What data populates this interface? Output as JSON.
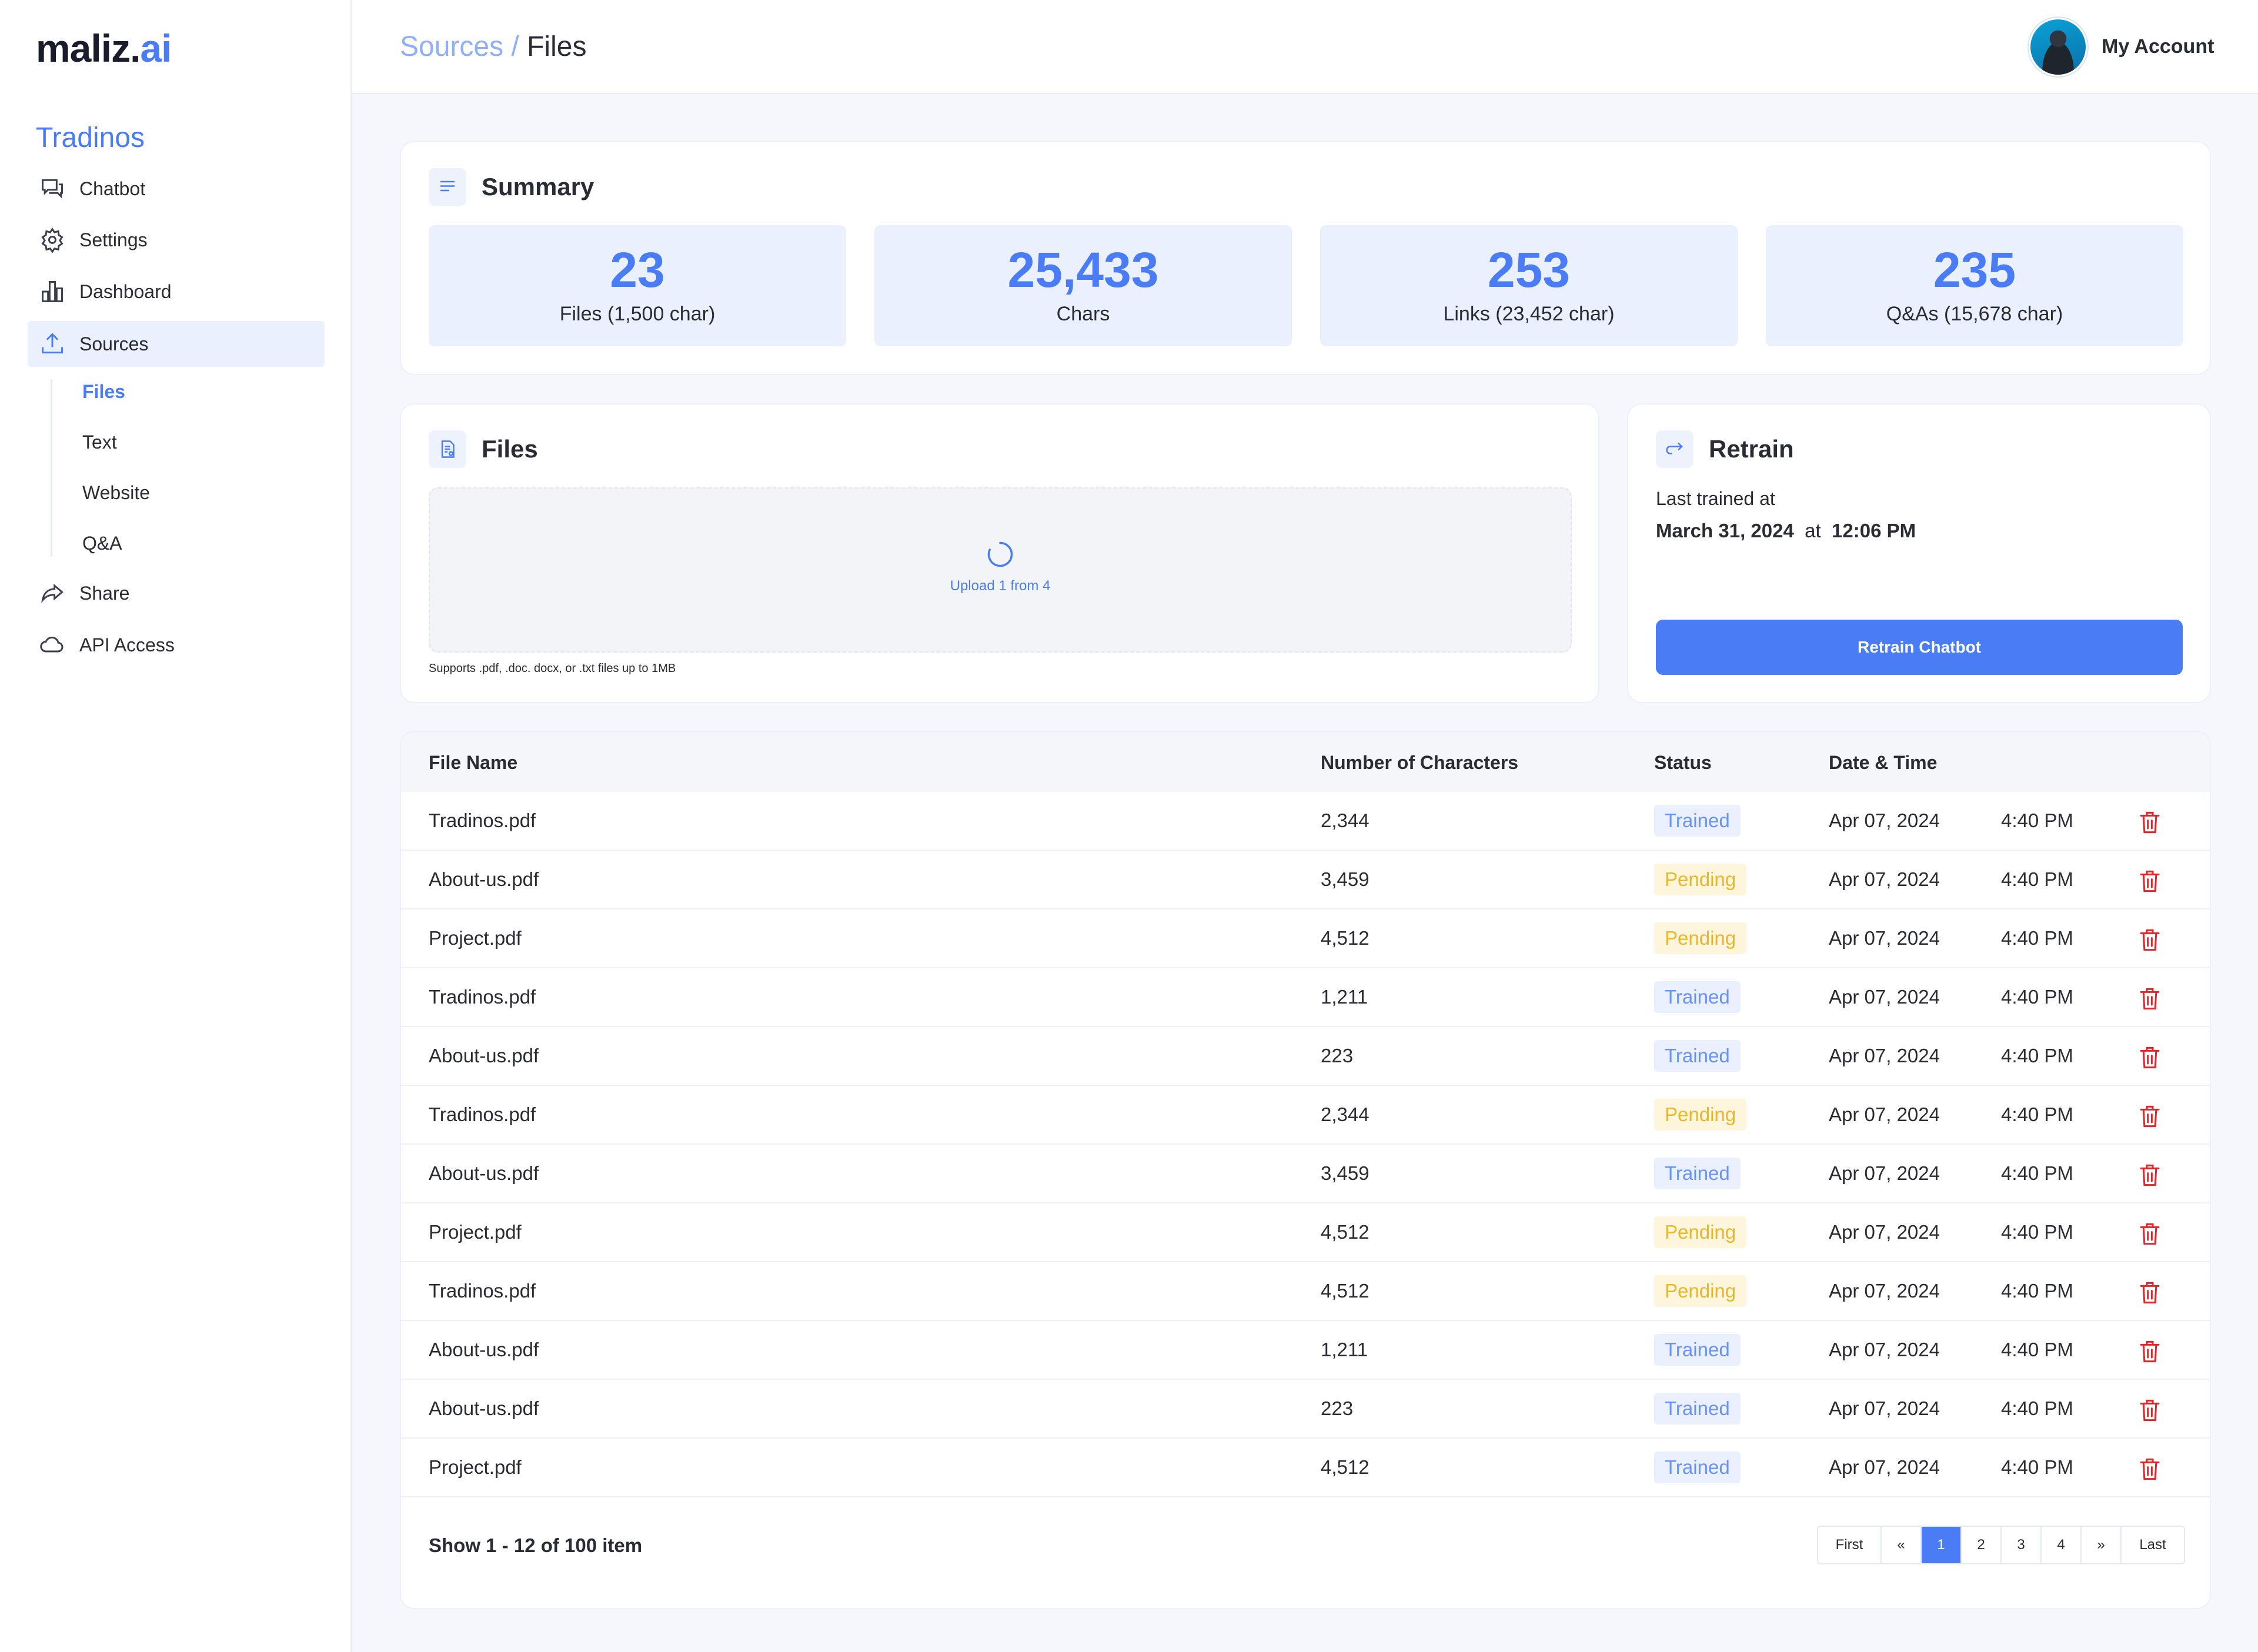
{
  "app": {
    "logo_main": "maliz.",
    "logo_accent": "ai"
  },
  "sidebar": {
    "org_name": "Tradinos",
    "nav": [
      {
        "label": "Chatbot",
        "icon": "chat-icon"
      },
      {
        "label": "Settings",
        "icon": "gear-icon"
      },
      {
        "label": "Dashboard",
        "icon": "bar-chart-icon"
      },
      {
        "label": "Sources",
        "icon": "upload-icon"
      },
      {
        "label": "Share",
        "icon": "share-icon"
      },
      {
        "label": "API Access",
        "icon": "cloud-icon"
      }
    ],
    "sources_sub": [
      {
        "label": "Files"
      },
      {
        "label": "Text"
      },
      {
        "label": "Website"
      },
      {
        "label": "Q&A"
      }
    ]
  },
  "header": {
    "breadcrumb_parent": "Sources",
    "breadcrumb_sep": " / ",
    "breadcrumb_current": "Files",
    "account_label": "My Account"
  },
  "summary": {
    "title": "Summary",
    "stats": [
      {
        "value": "23",
        "label": "Files (1,500 char)"
      },
      {
        "value": "25,433",
        "label": "Chars"
      },
      {
        "value": "253",
        "label": "Links (23,452 char)"
      },
      {
        "value": "235",
        "label": "Q&As (15,678 char)"
      }
    ]
  },
  "files_panel": {
    "title": "Files",
    "upload_status": "Upload 1 from 4",
    "support_note": "Supports .pdf, .doc. docx, or .txt files up to 1MB"
  },
  "retrain": {
    "title": "Retrain",
    "last_trained_label": "Last trained at",
    "date": "March 31, 2024",
    "at": "at",
    "time": "12:06 PM",
    "button_label": "Retrain Chatbot"
  },
  "table": {
    "headers": [
      "File Name",
      "Number of Characters",
      "Status",
      "Date & Time"
    ],
    "rows": [
      {
        "name": "Tradinos.pdf",
        "chars": "2,344",
        "status": "Trained",
        "date": "Apr 07, 2024",
        "time": "4:40 PM"
      },
      {
        "name": "About-us.pdf",
        "chars": "3,459",
        "status": "Pending",
        "date": "Apr 07, 2024",
        "time": "4:40 PM"
      },
      {
        "name": "Project.pdf",
        "chars": "4,512",
        "status": "Pending",
        "date": "Apr 07, 2024",
        "time": "4:40 PM"
      },
      {
        "name": "Tradinos.pdf",
        "chars": "1,211",
        "status": "Trained",
        "date": "Apr 07, 2024",
        "time": "4:40 PM"
      },
      {
        "name": "About-us.pdf",
        "chars": "223",
        "status": "Trained",
        "date": "Apr 07, 2024",
        "time": "4:40 PM"
      },
      {
        "name": "Tradinos.pdf",
        "chars": "2,344",
        "status": "Pending",
        "date": "Apr 07, 2024",
        "time": "4:40 PM"
      },
      {
        "name": "About-us.pdf",
        "chars": "3,459",
        "status": "Trained",
        "date": "Apr 07, 2024",
        "time": "4:40 PM"
      },
      {
        "name": "Project.pdf",
        "chars": "4,512",
        "status": "Pending",
        "date": "Apr 07, 2024",
        "time": "4:40 PM"
      },
      {
        "name": "Tradinos.pdf",
        "chars": "4,512",
        "status": "Pending",
        "date": "Apr 07, 2024",
        "time": "4:40 PM"
      },
      {
        "name": "About-us.pdf",
        "chars": "1,211",
        "status": "Trained",
        "date": "Apr 07, 2024",
        "time": "4:40 PM"
      },
      {
        "name": "About-us.pdf",
        "chars": "223",
        "status": "Trained",
        "date": "Apr 07, 2024",
        "time": "4:40 PM"
      },
      {
        "name": "Project.pdf",
        "chars": "4,512",
        "status": "Trained",
        "date": "Apr 07, 2024",
        "time": "4:40 PM"
      }
    ],
    "footer_text": "Show 1 - 12 of 100 item"
  },
  "pagination": {
    "first": "First",
    "prev": "«",
    "pages": [
      "1",
      "2",
      "3",
      "4"
    ],
    "next": "»",
    "last": "Last",
    "current": "1"
  },
  "colors": {
    "accent": "#4a7cf6",
    "pending": "#e9b82a",
    "danger": "#e0262b"
  }
}
